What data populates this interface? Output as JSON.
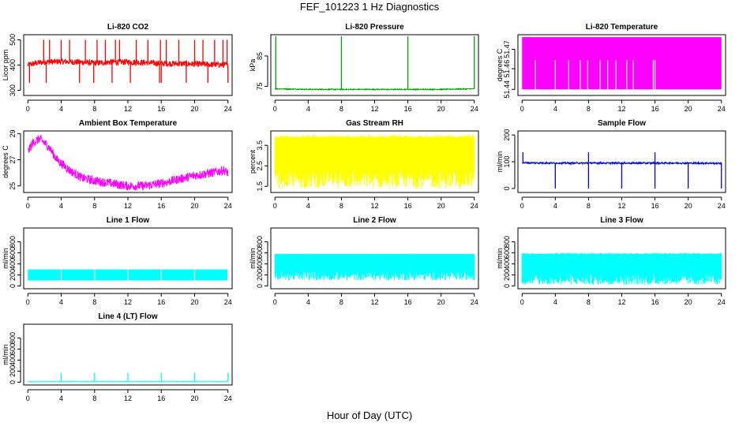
{
  "figure": {
    "title": "FEF_101223  1 Hz Diagnostics",
    "xlabel": "Hour of Day (UTC)"
  },
  "chart_data": [
    {
      "type": "line",
      "title": "Li-820 CO2",
      "ylabel": "Licor ppm",
      "color": "#ff0000",
      "ylim": [
        280,
        520
      ],
      "yticks": [
        300,
        400,
        500
      ],
      "xlim": [
        0,
        24
      ],
      "xticks": [
        0,
        4,
        8,
        12,
        16,
        20,
        24
      ],
      "baseline": [
        [
          0,
          400
        ],
        [
          1,
          408
        ],
        [
          2,
          412
        ],
        [
          4,
          414
        ],
        [
          6,
          412
        ],
        [
          8,
          408
        ],
        [
          10,
          412
        ],
        [
          12,
          412
        ],
        [
          14,
          410
        ],
        [
          16,
          406
        ],
        [
          18,
          406
        ],
        [
          20,
          404
        ],
        [
          22,
          402
        ],
        [
          24,
          400
        ]
      ],
      "noise": 12,
      "spikes_up": [
        1.9,
        2.6,
        4.0,
        5.0,
        6.9,
        8.3,
        9.3,
        10.5,
        11.0,
        13.0,
        14.4,
        15.9,
        16.6,
        18.1,
        20.0,
        21.0,
        22.4,
        23.4,
        23.9
      ],
      "spike_up_value": 500,
      "spikes_down": [
        0.2,
        2.2,
        6.2,
        7.9,
        10.1,
        12.3,
        15.8,
        16.0,
        19.0,
        21.6,
        24.0
      ],
      "spike_down_value": 330
    },
    {
      "type": "line",
      "title": "Li-820 Pressure",
      "ylabel": "kPa",
      "color": "#00a000",
      "ylim": [
        72,
        92
      ],
      "yticks": [
        75,
        85
      ],
      "xlim": [
        0,
        24
      ],
      "xticks": [
        0,
        4,
        8,
        12,
        16,
        20,
        24
      ],
      "baseline": [
        [
          0,
          74.2
        ],
        [
          4,
          74.0
        ],
        [
          8,
          74.0
        ],
        [
          12,
          74.0
        ],
        [
          16,
          74.0
        ],
        [
          20,
          74.0
        ],
        [
          24,
          74.2
        ]
      ],
      "noise": 0.15,
      "spikes_up": [
        0.1,
        8.0,
        16.0,
        24.0
      ],
      "spike_up_value": 91.5,
      "spikes_down": [],
      "spike_down_value": 74
    },
    {
      "type": "band",
      "title": "Li-820 Temperature",
      "ylabel": "degrees C",
      "color": "#ff00ff",
      "ylim": [
        51.435,
        51.485
      ],
      "ytick_values": [
        51.44,
        51.457,
        51.473
      ],
      "ytick_labels": [
        "51.44",
        "51.46",
        "51.47"
      ],
      "xlim": [
        0,
        24
      ],
      "xticks": [
        0,
        4,
        8,
        12,
        16,
        20,
        24
      ],
      "band": [
        51.44,
        51.483
      ],
      "gaps": [
        1.6,
        4.0,
        5.6,
        7.0,
        7.9,
        9.4,
        10.3,
        11.3,
        12.6,
        13.4,
        15.8,
        16.0
      ],
      "gap_top": 51.464
    },
    {
      "type": "line",
      "title": "Ambient Box Temperature",
      "ylabel": "degrees C",
      "color": "#ff00ff",
      "ylim": [
        24.5,
        29.2
      ],
      "yticks": [
        25,
        27,
        29
      ],
      "xlim": [
        0,
        24
      ],
      "xticks": [
        0,
        4,
        8,
        12,
        16,
        20,
        24
      ],
      "baseline": [
        [
          0,
          27.6
        ],
        [
          0.6,
          28.3
        ],
        [
          1.4,
          28.6
        ],
        [
          2.5,
          28.0
        ],
        [
          3.5,
          27.0
        ],
        [
          5,
          26.2
        ],
        [
          6.5,
          25.6
        ],
        [
          8,
          25.4
        ],
        [
          10,
          25.2
        ],
        [
          12,
          25.0
        ],
        [
          14,
          25.0
        ],
        [
          16,
          25.2
        ],
        [
          18,
          25.5
        ],
        [
          20,
          25.8
        ],
        [
          22,
          26.0
        ],
        [
          23.5,
          26.2
        ],
        [
          24,
          26.0
        ]
      ],
      "noise": 0.35,
      "spikes_up": [],
      "spike_up_value": 0,
      "spikes_down": [],
      "spike_down_value": 0
    },
    {
      "type": "band",
      "title": "Gas Stream RH",
      "ylabel": "percent",
      "color": "#ffff00",
      "ylim": [
        1.2,
        4.2
      ],
      "yticks": [
        1.5,
        2.5,
        3.5
      ],
      "ytick_labels": [
        "1.5",
        "2.5",
        "3.5"
      ],
      "xlim": [
        0,
        24
      ],
      "xticks": [
        0,
        4,
        8,
        12,
        16,
        20,
        24
      ],
      "band": [
        1.4,
        4.0
      ],
      "gaps": [],
      "gap_top": 0,
      "dense_noise": true,
      "solid_top": [
        3.0,
        3.9
      ]
    },
    {
      "type": "line",
      "title": "Sample Flow",
      "ylabel": "ml/min",
      "color": "#0000ff",
      "ylim": [
        -15,
        215
      ],
      "yticks": [
        0,
        100,
        200
      ],
      "xlim": [
        0,
        24
      ],
      "xticks": [
        0,
        4,
        8,
        12,
        16,
        20,
        24
      ],
      "baseline": [
        [
          0,
          96
        ],
        [
          4,
          95
        ],
        [
          8,
          95
        ],
        [
          12,
          95
        ],
        [
          16,
          95
        ],
        [
          20,
          95
        ],
        [
          24,
          94
        ]
      ],
      "noise": 3,
      "spikes_up": [
        0.1,
        8.0,
        16.0
      ],
      "spike_up_value": 135,
      "spikes_down": [
        4.0,
        8.0,
        12.0,
        16.0,
        20.0,
        24.0
      ],
      "spike_down_value": 0
    },
    {
      "type": "band",
      "title": "Line 1 Flow",
      "ylabel": "ml/min",
      "color": "#00ffff",
      "ylim": [
        -50,
        1050
      ],
      "yticks": [
        0,
        200,
        400,
        600,
        800
      ],
      "ytick_labels": [
        "0",
        "200",
        "400",
        "600",
        "800"
      ],
      "xlim": [
        0,
        24
      ],
      "xticks": [
        0,
        4,
        8,
        12,
        16,
        20,
        24
      ],
      "band": [
        100,
        300
      ],
      "gaps": [
        4.0,
        8.0,
        12.0,
        16.0,
        20.0,
        24.0
      ],
      "gap_top": 300
    },
    {
      "type": "band",
      "title": "Line 2 Flow",
      "ylabel": "ml/min",
      "color": "#00ffff",
      "ylim": [
        -50,
        1050
      ],
      "yticks": [
        0,
        200,
        400,
        600,
        800
      ],
      "ytick_labels": [
        "0",
        "200",
        "400",
        "600",
        "800"
      ],
      "xlim": [
        0,
        24
      ],
      "xticks": [
        0,
        4,
        8,
        12,
        16,
        20,
        24
      ],
      "band": [
        100,
        580
      ],
      "gaps": [],
      "gap_top": 0,
      "dense_noise": true,
      "solid_top": [
        400,
        580
      ]
    },
    {
      "type": "band",
      "title": "Line 3 Flow",
      "ylabel": "ml/min",
      "color": "#00ffff",
      "ylim": [
        -50,
        1050
      ],
      "yticks": [
        0,
        200,
        400,
        600,
        800
      ],
      "ytick_labels": [
        "0",
        "200",
        "400",
        "600",
        "800"
      ],
      "xlim": [
        0,
        24
      ],
      "xticks": [
        0,
        4,
        8,
        12,
        16,
        20,
        24
      ],
      "band": [
        20,
        600
      ],
      "gaps": [],
      "gap_top": 0,
      "dense_noise": true,
      "solid_top": [
        350,
        580
      ]
    },
    {
      "type": "line",
      "title": "Line 4 (LT) Flow",
      "ylabel": "ml/min",
      "color": "#00ffff",
      "ylim": [
        -50,
        1050
      ],
      "yticks": [
        0,
        200,
        400,
        600,
        800
      ],
      "xlim": [
        0,
        24
      ],
      "xticks": [
        0,
        4,
        8,
        12,
        16,
        20,
        24
      ],
      "baseline": [
        [
          0,
          10
        ],
        [
          24,
          10
        ]
      ],
      "noise": 4,
      "spikes_up": [
        4.0,
        8.0,
        12.0,
        16.0,
        20.0,
        24.0
      ],
      "spike_up_value": 170,
      "spikes_down": [],
      "spike_down_value": 0
    }
  ]
}
